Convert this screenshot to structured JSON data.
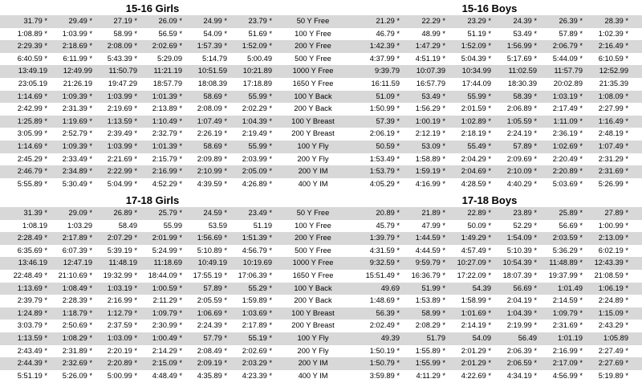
{
  "sections": [
    {
      "left_title": "15-16 Girls",
      "right_title": "15-16 Boys",
      "rows": [
        {
          "event": "50 Y Free",
          "girls": [
            "31.79 *",
            "29.49 *",
            "27.19 *",
            "26.09 *",
            "24.99 *",
            "23.79 *"
          ],
          "boys": [
            "21.29 *",
            "22.29 *",
            "23.29 *",
            "24.39 *",
            "26.39 *",
            "28.39 *"
          ]
        },
        {
          "event": "100 Y Free",
          "girls": [
            "1:08.89 *",
            "1:03.99 *",
            "58.99 *",
            "56.59 *",
            "54.09 *",
            "51.69 *"
          ],
          "boys": [
            "46.79 *",
            "48.99 *",
            "51.19 *",
            "53.49 *",
            "57.89 *",
            "1:02.39 *"
          ]
        },
        {
          "event": "200 Y Free",
          "girls": [
            "2:29.39 *",
            "2:18.69 *",
            "2:08.09 *",
            "2:02.69 *",
            "1:57.39 *",
            "1:52.09 *"
          ],
          "boys": [
            "1:42.39 *",
            "1:47.29 *",
            "1:52.09 *",
            "1:56.99 *",
            "2:06.79 *",
            "2:16.49 *"
          ]
        },
        {
          "event": "500 Y Free",
          "girls": [
            "6:40.59 *",
            "6:11.99 *",
            "5:43.39 *",
            "5:29.09",
            "5:14.79",
            "5:00.49"
          ],
          "boys": [
            "4:37.99 *",
            "4:51.19 *",
            "5:04.39 *",
            "5:17.69 *",
            "5:44.09 *",
            "6:10.59 *"
          ]
        },
        {
          "event": "1000 Y Free",
          "girls": [
            "13:49.19",
            "12:49.99",
            "11:50.79",
            "11:21.19",
            "10:51.59",
            "10:21.89"
          ],
          "boys": [
            "9:39.79",
            "10:07.39",
            "10:34.99",
            "11:02.59",
            "11:57.79",
            "12:52.99"
          ]
        },
        {
          "event": "1650 Y Free",
          "girls": [
            "23:05.19",
            "21:26.19",
            "19:47.29",
            "18:57.79",
            "18:08.39",
            "17:18.89"
          ],
          "boys": [
            "16:11.59",
            "16:57.79",
            "17:44.09",
            "18:30.39",
            "20:02.89",
            "21:35.39"
          ]
        },
        {
          "event": "100 Y Back",
          "girls": [
            "1:14.69 *",
            "1:09.39 *",
            "1:03.99 *",
            "1:01.39 *",
            "58.69 *",
            "55.99 *"
          ],
          "boys": [
            "51.09 *",
            "53.49 *",
            "55.99 *",
            "58.39 *",
            "1:03.19 *",
            "1:08.09 *"
          ]
        },
        {
          "event": "200 Y Back",
          "girls": [
            "2:42.99 *",
            "2:31.39 *",
            "2:19.69 *",
            "2:13.89 *",
            "2:08.09 *",
            "2:02.29 *"
          ],
          "boys": [
            "1:50.99 *",
            "1:56.29 *",
            "2:01.59 *",
            "2:06.89 *",
            "2:17.49 *",
            "2:27.99 *"
          ]
        },
        {
          "event": "100 Y Breast",
          "girls": [
            "1:25.89 *",
            "1:19.69 *",
            "1:13.59 *",
            "1:10.49 *",
            "1:07.49 *",
            "1:04.39 *"
          ],
          "boys": [
            "57.39 *",
            "1:00.19 *",
            "1:02.89 *",
            "1:05.59 *",
            "1:11.09 *",
            "1:16.49 *"
          ]
        },
        {
          "event": "200 Y Breast",
          "girls": [
            "3:05.99 *",
            "2:52.79 *",
            "2:39.49 *",
            "2:32.79 *",
            "2:26.19 *",
            "2:19.49 *"
          ],
          "boys": [
            "2:06.19 *",
            "2:12.19 *",
            "2:18.19 *",
            "2:24.19 *",
            "2:36.19 *",
            "2:48.19 *"
          ]
        },
        {
          "event": "100 Y Fly",
          "girls": [
            "1:14.69 *",
            "1:09.39 *",
            "1:03.99 *",
            "1:01.39 *",
            "58.69 *",
            "55.99 *"
          ],
          "boys": [
            "50.59 *",
            "53.09 *",
            "55.49 *",
            "57.89 *",
            "1:02.69 *",
            "1:07.49 *"
          ]
        },
        {
          "event": "200 Y Fly",
          "girls": [
            "2:45.29 *",
            "2:33.49 *",
            "2:21.69 *",
            "2:15.79 *",
            "2:09.89 *",
            "2:03.99 *"
          ],
          "boys": [
            "1:53.49 *",
            "1:58.89 *",
            "2:04.29 *",
            "2:09.69 *",
            "2:20.49 *",
            "2:31.29 *"
          ]
        },
        {
          "event": "200 Y IM",
          "girls": [
            "2:46.79 *",
            "2:34.89 *",
            "2:22.99 *",
            "2:16.99 *",
            "2:10.99 *",
            "2:05.09 *"
          ],
          "boys": [
            "1:53.79 *",
            "1:59.19 *",
            "2:04.69 *",
            "2:10.09 *",
            "2:20.89 *",
            "2:31.69 *"
          ]
        },
        {
          "event": "400 Y IM",
          "girls": [
            "5:55.89 *",
            "5:30.49 *",
            "5:04.99 *",
            "4:52.29 *",
            "4:39.59 *",
            "4:26.89 *"
          ],
          "boys": [
            "4:05.29 *",
            "4:16.99 *",
            "4:28.59 *",
            "4:40.29 *",
            "5:03.69 *",
            "5:26.99 *"
          ]
        }
      ]
    },
    {
      "left_title": "17-18 Girls",
      "right_title": "17-18 Boys",
      "rows": [
        {
          "event": "50 Y Free",
          "girls": [
            "31.39 *",
            "29.09 *",
            "26.89 *",
            "25.79 *",
            "24.59 *",
            "23.49 *"
          ],
          "boys": [
            "20.89 *",
            "21.89 *",
            "22.89 *",
            "23.89 *",
            "25.89 *",
            "27.89 *"
          ]
        },
        {
          "event": "100 Y Free",
          "girls": [
            "1:08.19",
            "1:03.29",
            "58.49",
            "55.99",
            "53.59",
            "51.19"
          ],
          "boys": [
            "45.79 *",
            "47.99 *",
            "50.09 *",
            "52.29 *",
            "56.69 *",
            "1:00.99 *"
          ]
        },
        {
          "event": "200 Y Free",
          "girls": [
            "2:28.49 *",
            "2:17.89 *",
            "2:07.29 *",
            "2:01.99 *",
            "1:56.69 *",
            "1:51.39 *"
          ],
          "boys": [
            "1:39.79 *",
            "1:44.59 *",
            "1:49.29 *",
            "1:54.09 *",
            "2:03.59 *",
            "2:13.09 *"
          ]
        },
        {
          "event": "500 Y Free",
          "girls": [
            "6:35.69 *",
            "6:07.39 *",
            "5:39.19 *",
            "5:24.99 *",
            "5:10.89 *",
            "4:56.79 *"
          ],
          "boys": [
            "4:31.59 *",
            "4:44.59 *",
            "4:57.49 *",
            "5:10.39 *",
            "5:36.29 *",
            "6:02.19 *"
          ]
        },
        {
          "event": "1000 Y Free",
          "girls": [
            "13:46.19",
            "12:47.19",
            "11:48.19",
            "11:18.69",
            "10:49.19",
            "10:19.69"
          ],
          "boys": [
            "9:32.59 *",
            "9:59.79 *",
            "10:27.09 *",
            "10:54.39 *",
            "11:48.89 *",
            "12:43.39 *"
          ]
        },
        {
          "event": "1650 Y Free",
          "girls": [
            "22:48.49 *",
            "21:10.69 *",
            "19:32.99 *",
            "18:44.09 *",
            "17:55.19 *",
            "17:06.39 *"
          ],
          "boys": [
            "15:51.49 *",
            "16:36.79 *",
            "17:22.09 *",
            "18:07.39 *",
            "19:37.99 *",
            "21:08.59 *"
          ]
        },
        {
          "event": "100 Y Back",
          "girls": [
            "1:13.69 *",
            "1:08.49 *",
            "1:03.19 *",
            "1:00.59 *",
            "57.89 *",
            "55.29 *"
          ],
          "boys": [
            "49.69",
            "51.99 *",
            "54.39",
            "56.69 *",
            "1:01.49",
            "1:06.19 *"
          ]
        },
        {
          "event": "200 Y Back",
          "girls": [
            "2:39.79 *",
            "2:28.39 *",
            "2:16.99 *",
            "2:11.29 *",
            "2:05.59 *",
            "1:59.89 *"
          ],
          "boys": [
            "1:48.69 *",
            "1:53.89 *",
            "1:58.99 *",
            "2:04.19 *",
            "2:14.59 *",
            "2:24.89 *"
          ]
        },
        {
          "event": "100 Y Breast",
          "girls": [
            "1:24.89 *",
            "1:18.79 *",
            "1:12.79 *",
            "1:09.79 *",
            "1:06.69 *",
            "1:03.69 *"
          ],
          "boys": [
            "56.39 *",
            "58.99 *",
            "1:01.69 *",
            "1:04.39 *",
            "1:09.79 *",
            "1:15.09 *"
          ]
        },
        {
          "event": "200 Y Breast",
          "girls": [
            "3:03.79 *",
            "2:50.69 *",
            "2:37.59 *",
            "2:30.99 *",
            "2:24.39 *",
            "2:17.89 *"
          ],
          "boys": [
            "2:02.49 *",
            "2:08.29 *",
            "2:14.19 *",
            "2:19.99 *",
            "2:31.69 *",
            "2:43.29 *"
          ]
        },
        {
          "event": "100 Y Fly",
          "girls": [
            "1:13.59 *",
            "1:08.29 *",
            "1:03.09 *",
            "1:00.49 *",
            "57.79 *",
            "55.19 *"
          ],
          "boys": [
            "49.39",
            "51.79",
            "54.09",
            "56.49",
            "1:01.19",
            "1:05.89"
          ]
        },
        {
          "event": "200 Y Fly",
          "girls": [
            "2:43.49 *",
            "2:31.89 *",
            "2:20.19 *",
            "2:14.29 *",
            "2:08.49 *",
            "2:02.69 *"
          ],
          "boys": [
            "1:50.19 *",
            "1:55.89 *",
            "2:01.29 *",
            "2:06.39 *",
            "2:16.99 *",
            "2:27.49 *"
          ]
        },
        {
          "event": "200 Y IM",
          "girls": [
            "2:44.39 *",
            "2:32.69 *",
            "2:20.89 *",
            "2:15.09 *",
            "2:09.19 *",
            "2:03.29 *"
          ],
          "boys": [
            "1:50.79 *",
            "1:55.99 *",
            "2:01.29 *",
            "2:06.59 *",
            "2:17.09 *",
            "2:27.69 *"
          ]
        },
        {
          "event": "400 Y IM",
          "girls": [
            "5:51.19 *",
            "5:26.09 *",
            "5:00.99 *",
            "4:48.49 *",
            "4:35.89 *",
            "4:23.39 *"
          ],
          "boys": [
            "3:59.89 *",
            "4:11.29 *",
            "4:22.69 *",
            "4:34.19 *",
            "4:56.99 *",
            "5:19.89 *"
          ]
        }
      ]
    }
  ]
}
